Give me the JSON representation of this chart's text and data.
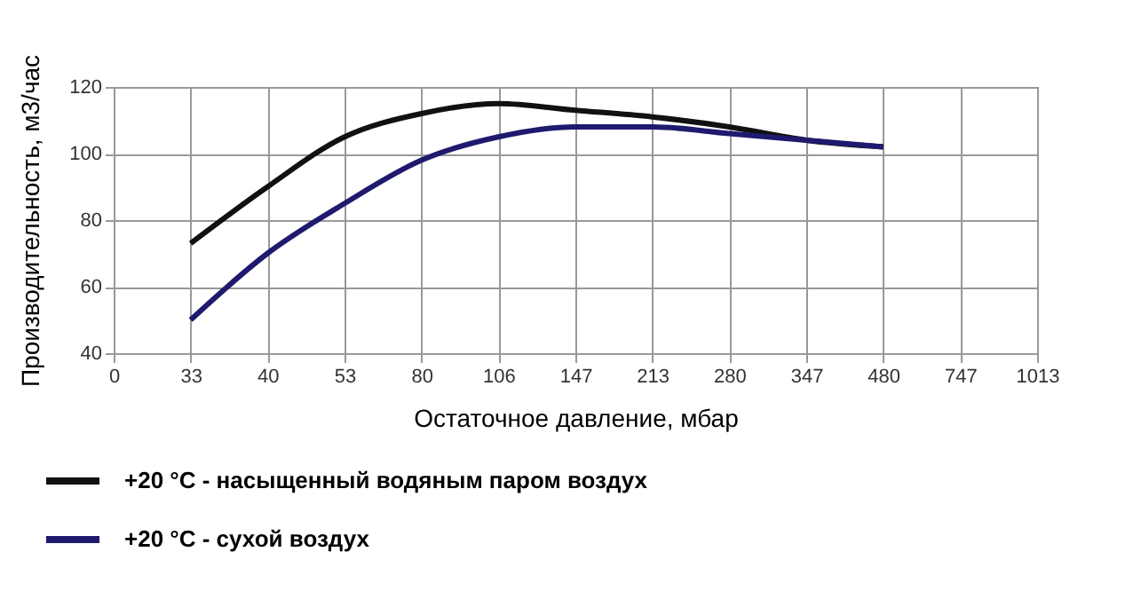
{
  "chart_data": {
    "type": "line",
    "xlabel": "Остаточное давление, мбар",
    "ylabel": "Производительность, м3/час",
    "categories": [
      "0",
      "33",
      "40",
      "53",
      "80",
      "106",
      "147",
      "213",
      "280",
      "347",
      "480",
      "747",
      "1013"
    ],
    "series": [
      {
        "name": "+20 °C - насыщенный водяным паром воздух",
        "color": "#111111",
        "values": [
          null,
          73,
          90,
          105,
          112,
          115,
          113,
          111,
          108,
          104,
          102,
          null,
          null
        ]
      },
      {
        "name": "+20 °C - сухой воздух",
        "color": "#1f1a6e",
        "values": [
          null,
          50,
          70,
          85,
          98,
          105,
          108,
          108,
          106,
          104,
          102,
          null,
          null
        ]
      }
    ],
    "ylim": [
      40,
      120
    ],
    "yticks": [
      40,
      60,
      80,
      100,
      120
    ],
    "grid": true,
    "legend": "bottom left",
    "marker": "none",
    "line_style": "solid"
  }
}
